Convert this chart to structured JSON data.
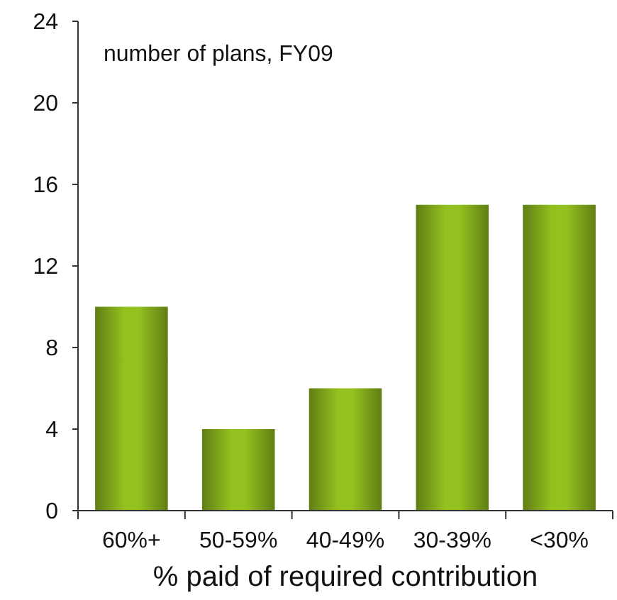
{
  "chart_data": {
    "type": "bar",
    "ylabel": "number of plans, FY09",
    "xlabel": "% paid of required contribution",
    "categories": [
      "60%+",
      "50-59%",
      "40-49%",
      "30-39%",
      "<30%"
    ],
    "values": [
      10,
      4,
      6,
      15,
      15
    ],
    "color": "#94c11f",
    "ylim": [
      0,
      24
    ],
    "yticks": [
      0,
      4,
      8,
      12,
      16,
      20,
      24
    ],
    "grid": false
  }
}
